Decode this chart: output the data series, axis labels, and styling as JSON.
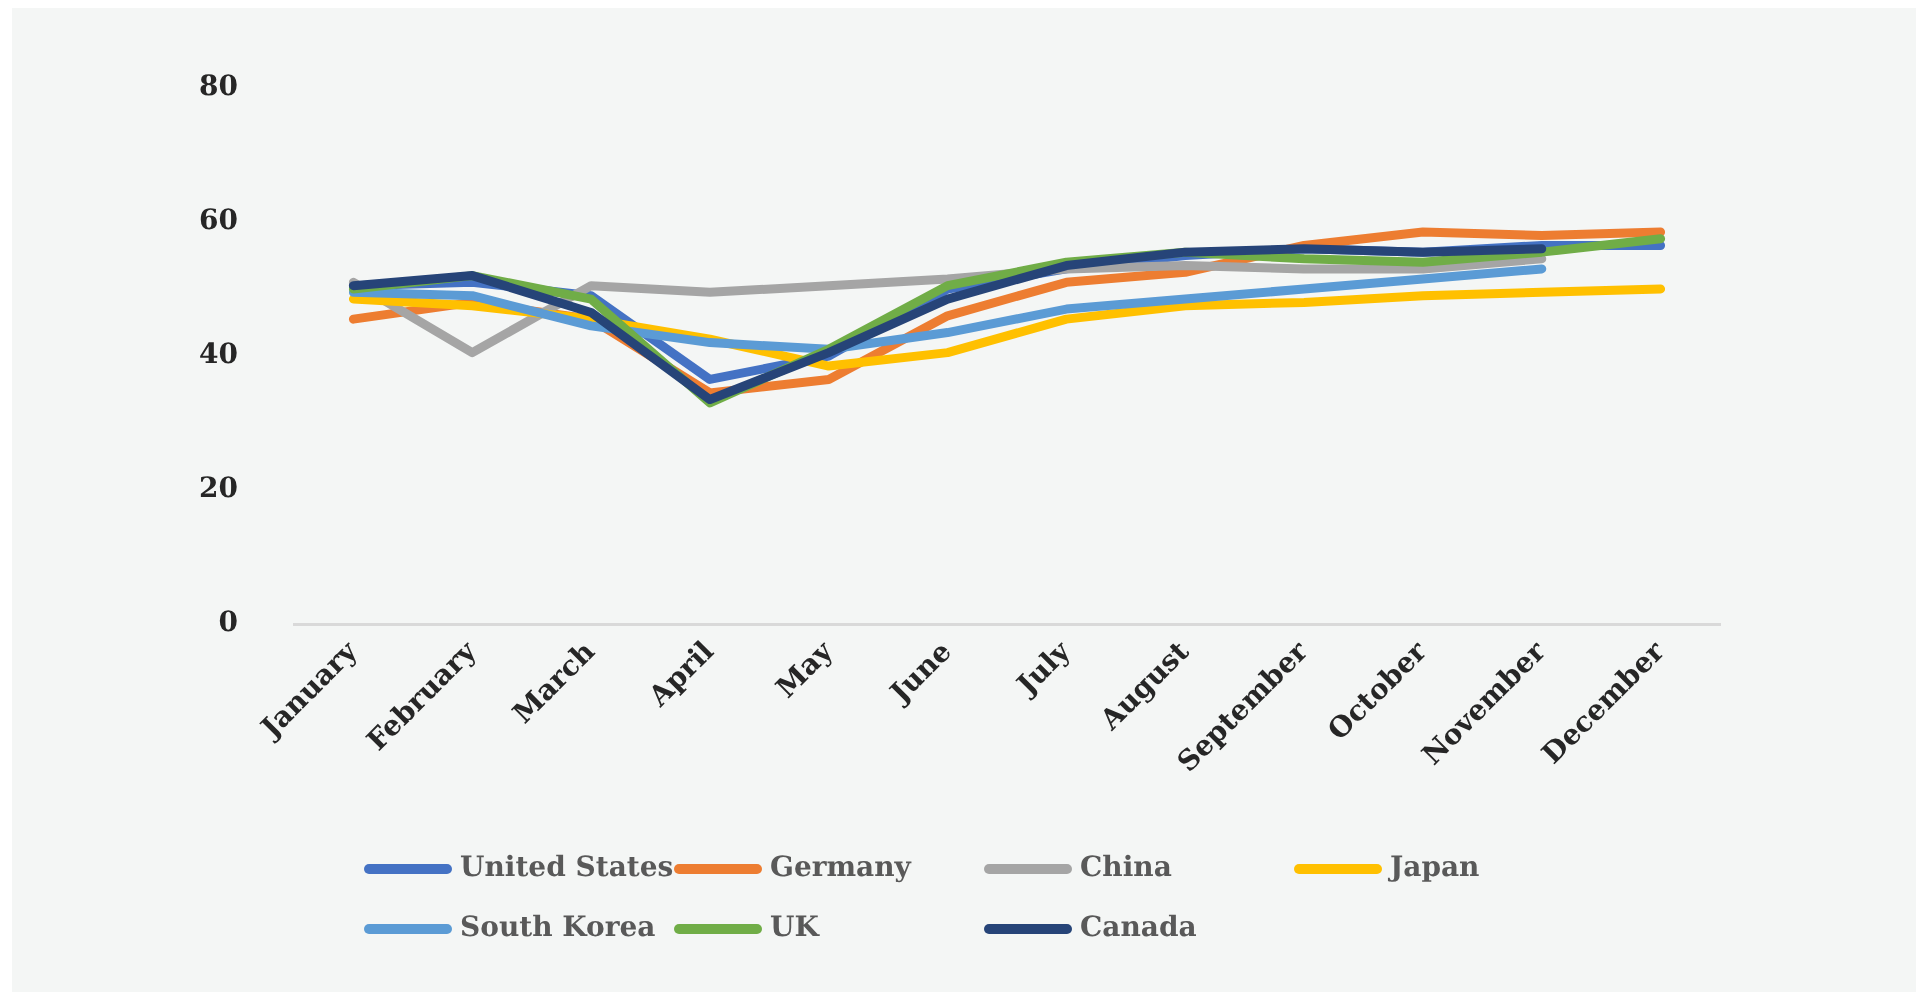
{
  "chart_data": {
    "type": "line",
    "categories": [
      "January",
      "February",
      "March",
      "April",
      "May",
      "June",
      "July",
      "August",
      "September",
      "October",
      "November",
      "December"
    ],
    "series": [
      {
        "name": "United States",
        "color": "#4472c4",
        "values": [
          50.5,
          51,
          49,
          36.5,
          40,
          50,
          53,
          55,
          56,
          55.5,
          56.5,
          56.5
        ]
      },
      {
        "name": "Germany",
        "color": "#ed7d31",
        "values": [
          45.5,
          48,
          45.5,
          34.5,
          36.5,
          46,
          51,
          52.5,
          56.5,
          58.5,
          58,
          58.5
        ]
      },
      {
        "name": "China",
        "color": "#a5a5a5",
        "values": [
          51,
          40.5,
          50.5,
          49.5,
          50.5,
          51.5,
          53,
          53.5,
          53,
          53,
          54.5,
          null
        ]
      },
      {
        "name": "Japan",
        "color": "#ffc000",
        "values": [
          48.5,
          47.5,
          45.5,
          42.5,
          38.5,
          40.5,
          45.5,
          47.5,
          48,
          49,
          49.5,
          50
        ]
      },
      {
        "name": "South Korea",
        "color": "#5b9bd5",
        "values": [
          49.5,
          49,
          44.5,
          42,
          41,
          43.5,
          47,
          48.5,
          50,
          51.5,
          53,
          null
        ]
      },
      {
        "name": "UK",
        "color": "#70ad47",
        "values": [
          50,
          52,
          48.5,
          33,
          41,
          50.5,
          54,
          55.5,
          54.5,
          54,
          55.5,
          57.5
        ]
      },
      {
        "name": "Canada",
        "color": "#264478",
        "values": [
          50.5,
          52,
          46.5,
          33.5,
          40.5,
          48.5,
          53.5,
          55.5,
          56,
          55.5,
          56,
          null
        ]
      }
    ],
    "ylim": [
      0,
      80
    ],
    "yticks": [
      0,
      20,
      40,
      60,
      80
    ],
    "legend": "bottom",
    "marker": "none"
  }
}
